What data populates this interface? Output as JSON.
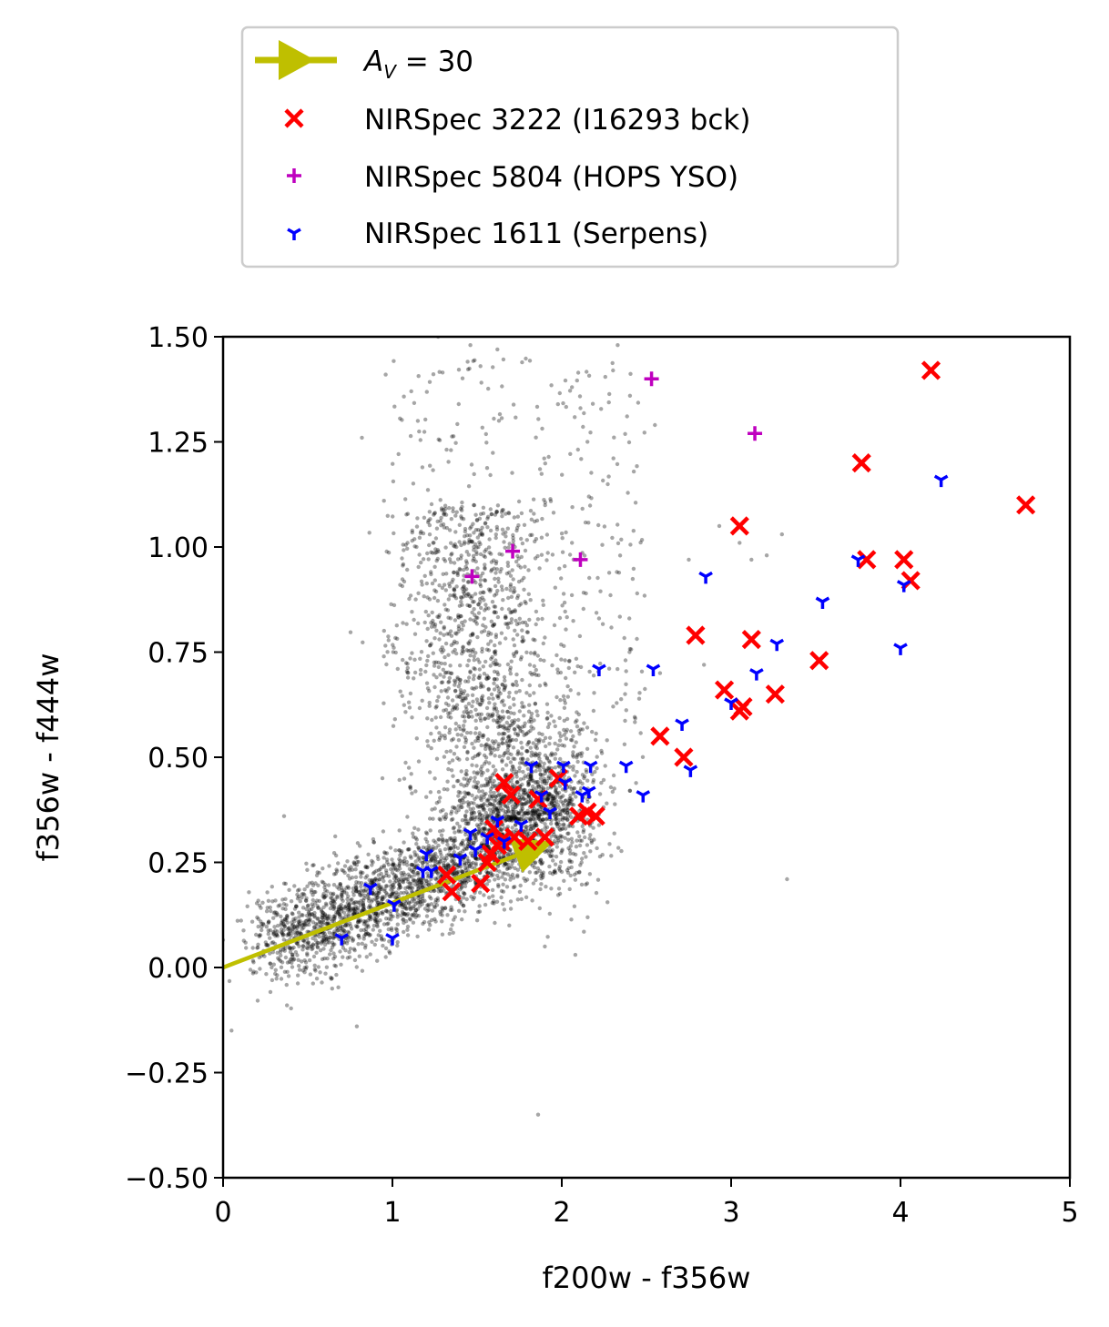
{
  "chart_data": {
    "type": "scatter",
    "xlabel": "f200w - f356w",
    "ylabel": "f356w - f444w",
    "xlim": [
      0,
      5
    ],
    "ylim": [
      -0.5,
      1.5
    ],
    "x_ticks": [
      "0",
      "1",
      "2",
      "3",
      "4",
      "5"
    ],
    "y_ticks": [
      "−0.50",
      "−0.25",
      "0.00",
      "0.25",
      "0.50",
      "0.75",
      "1.00",
      "1.25",
      "1.50"
    ],
    "grid": false,
    "legend_position": "above plot, top-center",
    "reddening_vector": {
      "label_prefix": "A",
      "label_sub": "V",
      "label_suffix": " = 30",
      "color": "#bfbf00",
      "from": [
        0.0,
        0.0
      ],
      "to": [
        1.95,
        0.3
      ]
    },
    "background": {
      "description": "dense cloud of field sources",
      "color": "#000000",
      "outliers": [
        [
          0.05,
          -0.15
        ],
        [
          0.79,
          -0.14
        ],
        [
          1.86,
          -0.35
        ],
        [
          3.33,
          0.21
        ],
        [
          0.82,
          1.26
        ],
        [
          0.95,
          1.11
        ],
        [
          0.96,
          1.41
        ],
        [
          1.15,
          1.3
        ],
        [
          1.27,
          1.5
        ],
        [
          1.46,
          1.48
        ],
        [
          1.52,
          1.43
        ],
        [
          1.62,
          1.47
        ],
        [
          1.76,
          1.51
        ],
        [
          2.06,
          1.38
        ],
        [
          2.11,
          1.33
        ],
        [
          2.33,
          1.48
        ],
        [
          2.16,
          1.12
        ],
        [
          2.06,
          1.01
        ],
        [
          2.55,
          1.29
        ],
        [
          2.93,
          1.05
        ],
        [
          3.05,
          1.01
        ],
        [
          3.12,
          0.97
        ],
        [
          3.21,
          0.98
        ],
        [
          3.3,
          1.03
        ],
        [
          2.75,
          0.97
        ],
        [
          2.22,
          0.83
        ],
        [
          2.4,
          0.75
        ],
        [
          2.58,
          0.7
        ],
        [
          2.84,
          0.72
        ],
        [
          2.95,
          0.66
        ],
        [
          0.88,
          0.2
        ],
        [
          0.36,
          0.36
        ],
        [
          0.72,
          0.07
        ],
        [
          0.42,
          0.02
        ],
        [
          2.08,
          0.03
        ],
        [
          1.9,
          0.05
        ],
        [
          1.69,
          0.1
        ],
        [
          2.15,
          0.2
        ],
        [
          0.18,
          -0.01
        ],
        [
          0.29,
          -0.03
        ]
      ]
    },
    "series": [
      {
        "name": "NIRSpec 3222 (I16293 bck)",
        "marker": "x",
        "color": "#ff0000",
        "points": [
          [
            1.32,
            0.22
          ],
          [
            1.35,
            0.18
          ],
          [
            1.52,
            0.2
          ],
          [
            1.56,
            0.25
          ],
          [
            1.58,
            0.27
          ],
          [
            1.62,
            0.29
          ],
          [
            1.64,
            0.3
          ],
          [
            1.66,
            0.44
          ],
          [
            1.7,
            0.41
          ],
          [
            1.6,
            0.33
          ],
          [
            1.72,
            0.31
          ],
          [
            1.8,
            0.3
          ],
          [
            1.86,
            0.4
          ],
          [
            1.9,
            0.31
          ],
          [
            1.98,
            0.45
          ],
          [
            2.1,
            0.36
          ],
          [
            2.15,
            0.37
          ],
          [
            2.2,
            0.36
          ],
          [
            2.58,
            0.55
          ],
          [
            2.72,
            0.5
          ],
          [
            2.79,
            0.79
          ],
          [
            2.96,
            0.66
          ],
          [
            3.05,
            0.61
          ],
          [
            3.07,
            0.62
          ],
          [
            3.05,
            1.05
          ],
          [
            3.12,
            0.78
          ],
          [
            3.26,
            0.65
          ],
          [
            3.52,
            0.73
          ],
          [
            3.77,
            1.2
          ],
          [
            3.8,
            0.97
          ],
          [
            4.02,
            0.97
          ],
          [
            4.06,
            0.92
          ],
          [
            4.18,
            1.42
          ],
          [
            4.74,
            1.1
          ]
        ]
      },
      {
        "name": "NIRSpec 5804 (HOPS YSO)",
        "marker": "+",
        "color": "#bf00bf",
        "points": [
          [
            1.47,
            0.93
          ],
          [
            1.71,
            0.99
          ],
          [
            2.11,
            0.97
          ],
          [
            2.53,
            1.4
          ],
          [
            3.14,
            1.27
          ]
        ]
      },
      {
        "name": "NIRSpec 1611 (Serpens)",
        "marker": "tri_down",
        "color": "#0000ff",
        "points": [
          [
            0.7,
            0.07
          ],
          [
            0.87,
            0.19
          ],
          [
            1.0,
            0.07
          ],
          [
            1.01,
            0.15
          ],
          [
            1.18,
            0.23
          ],
          [
            1.2,
            0.27
          ],
          [
            1.23,
            0.23
          ],
          [
            1.4,
            0.26
          ],
          [
            1.46,
            0.32
          ],
          [
            1.49,
            0.28
          ],
          [
            1.56,
            0.31
          ],
          [
            1.62,
            0.35
          ],
          [
            1.66,
            0.3
          ],
          [
            1.76,
            0.34
          ],
          [
            1.82,
            0.48
          ],
          [
            1.88,
            0.41
          ],
          [
            1.93,
            0.37
          ],
          [
            2.01,
            0.48
          ],
          [
            2.02,
            0.44
          ],
          [
            2.12,
            0.41
          ],
          [
            2.16,
            0.42
          ],
          [
            2.17,
            0.48
          ],
          [
            2.22,
            0.71
          ],
          [
            2.38,
            0.48
          ],
          [
            2.48,
            0.41
          ],
          [
            2.54,
            0.71
          ],
          [
            2.71,
            0.58
          ],
          [
            2.76,
            0.47
          ],
          [
            2.85,
            0.93
          ],
          [
            3.0,
            0.63
          ],
          [
            3.15,
            0.7
          ],
          [
            3.27,
            0.77
          ],
          [
            3.54,
            0.87
          ],
          [
            3.75,
            0.97
          ],
          [
            4.0,
            0.76
          ],
          [
            4.02,
            0.91
          ],
          [
            4.24,
            1.16
          ]
        ]
      }
    ]
  }
}
